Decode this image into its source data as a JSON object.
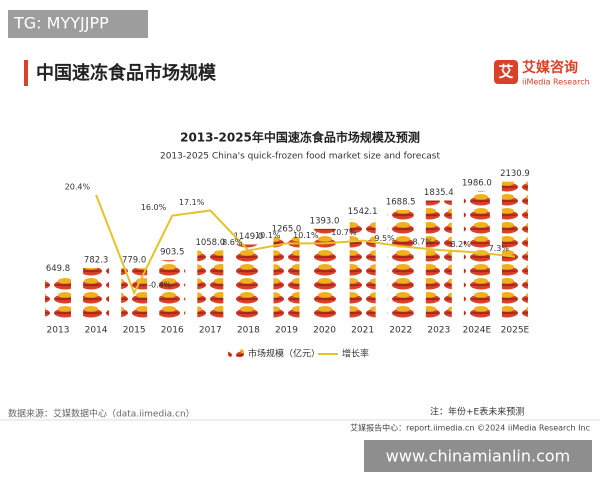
{
  "watermark": "TG: MYYJJPP",
  "header": {
    "title": "中国速冻食品市场规模",
    "logo_cn": "艾媒咨询",
    "logo_en": "iiMedia Research"
  },
  "chart_data": {
    "type": "bar",
    "title": "2013-2025年中国速冻食品市场规模及预测",
    "subtitle": "2013-2025 China's quick-frozen food market size and forecast",
    "categories": [
      "2013",
      "2014",
      "2015",
      "2016",
      "2017",
      "2018",
      "2019",
      "2020",
      "2021",
      "2022",
      "2023",
      "2024E",
      "2025E"
    ],
    "series": [
      {
        "name": "市场规模（亿元）",
        "color": "#d9412b",
        "type": "bar",
        "values": [
          649.8,
          782.3,
          779.0,
          903.5,
          1058.0,
          1149.0,
          1265.0,
          1393.0,
          1542.1,
          1688.5,
          1835.4,
          1986.0,
          2130.9
        ],
        "value_labels": [
          "649.8",
          "782.3",
          "779.0",
          "903.5",
          "1058.0",
          "1149.0",
          "1265.0",
          "1393.0",
          "1542.1",
          "1688.5",
          "1835.4",
          "1986.0",
          "2130.9"
        ]
      },
      {
        "name": "增长率",
        "color": "#e6c229",
        "type": "line",
        "values": [
          null,
          20.4,
          -0.4,
          16.0,
          17.1,
          8.6,
          10.1,
          10.1,
          10.7,
          9.5,
          8.7,
          8.2,
          7.3
        ],
        "value_labels": [
          null,
          "20.4%",
          "-0.4%",
          "16.0%",
          "17.1%",
          "8.6%",
          "10.1%",
          "10.1%",
          "10.7%",
          "9.5%",
          "8.7%",
          "8.2%",
          "7.3%"
        ]
      }
    ]
  },
  "footer": {
    "source": "数据来源：艾媒数据中心（data.iimedia.cn）",
    "note": "注：年份+E表未来预测",
    "credit": "艾媒报告中心：report.iimedia.cn  ©2024  iiMedia Research Inc",
    "site": "www.chinamianlin.com"
  }
}
